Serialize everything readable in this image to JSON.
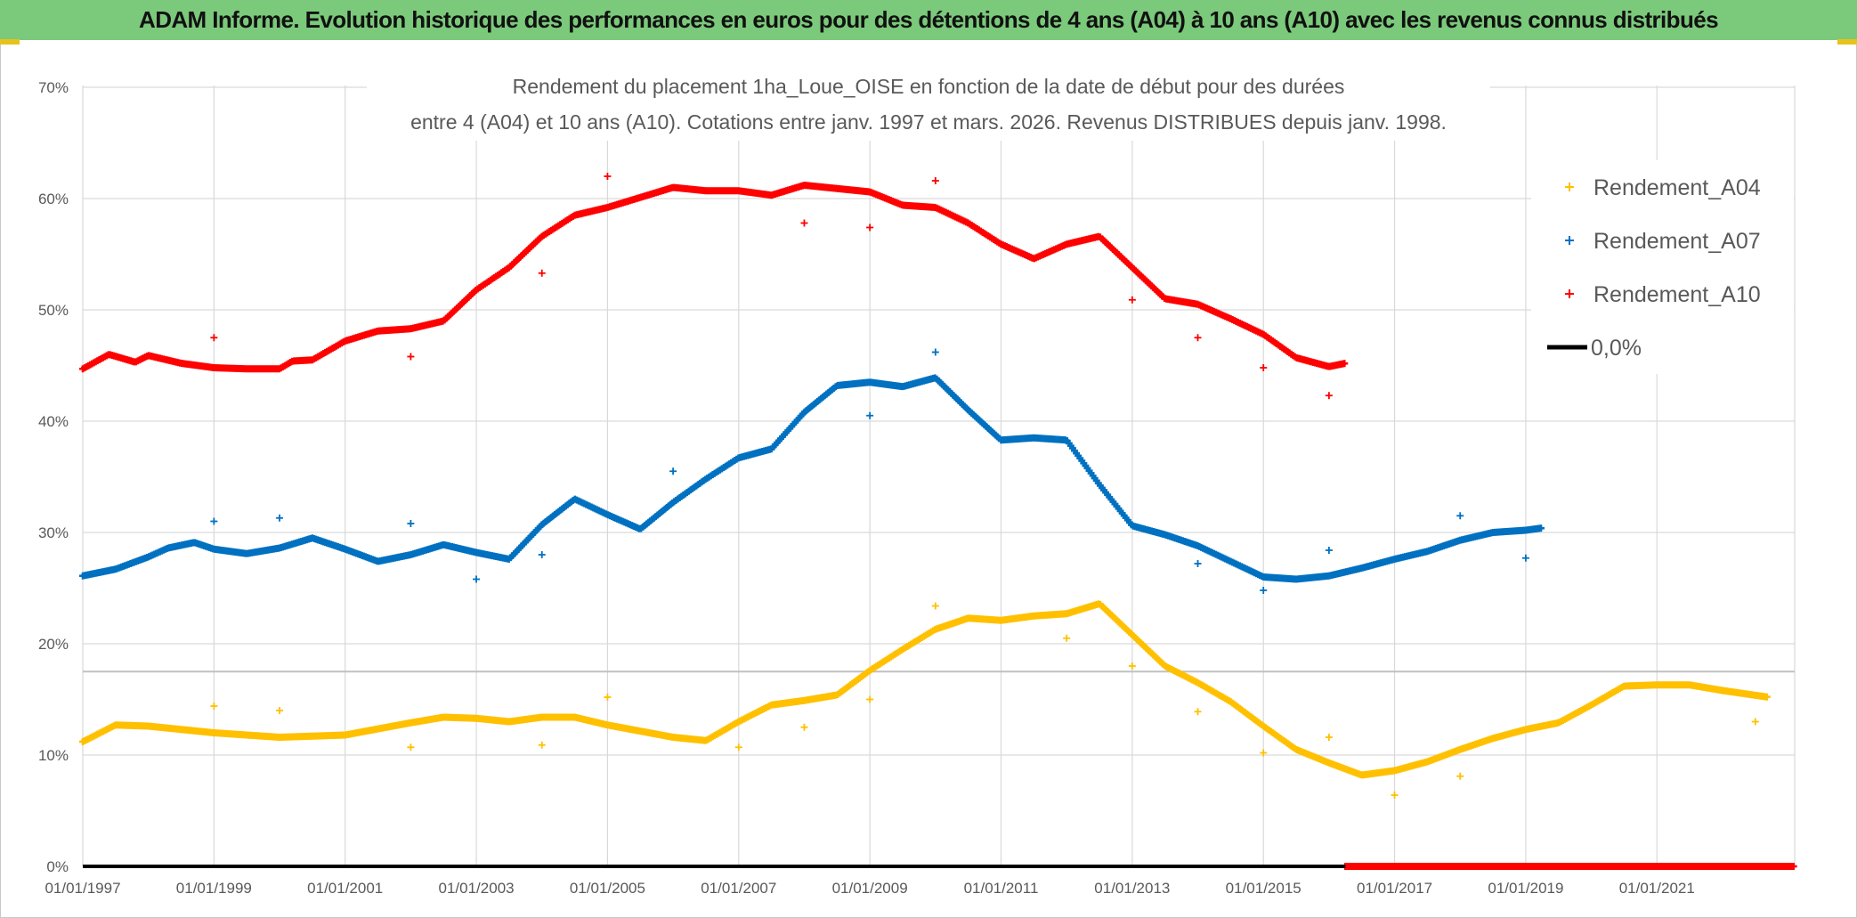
{
  "banner": {
    "text": "ADAM Informe. Evolution historique des performances en euros pour des détentions de 4 ans (A04) à 10 ans (A10) avec les revenus connus distribués"
  },
  "colors": {
    "banner_bg": "#7bc97b",
    "a04": "#ffc000",
    "a07": "#0070c0",
    "a10": "#ff0000",
    "zero": "#000000",
    "grid": "#d9d9d9",
    "text": "#595959"
  },
  "chart_data": {
    "type": "scatter",
    "title_lines": [
      "Rendement du placement 1ha_Loue_OISE en fonction de la date de début pour des durées",
      "entre 4 (A04) et 10 ans (A10). Cotations entre janv. 1997 et mars. 2026. Revenus DISTRIBUES depuis janv. 1998."
    ],
    "x_range": [
      1997.0,
      2023.1
    ],
    "x_ticks": [
      {
        "value": 1997,
        "label": "01/01/1997"
      },
      {
        "value": 1999,
        "label": "01/01/1999"
      },
      {
        "value": 2001,
        "label": "01/01/2001"
      },
      {
        "value": 2003,
        "label": "01/01/2003"
      },
      {
        "value": 2005,
        "label": "01/01/2005"
      },
      {
        "value": 2007,
        "label": "01/01/2007"
      },
      {
        "value": 2009,
        "label": "01/01/2009"
      },
      {
        "value": 2011,
        "label": "01/01/2011"
      },
      {
        "value": 2013,
        "label": "01/01/2013"
      },
      {
        "value": 2015,
        "label": "01/01/2015"
      },
      {
        "value": 2017,
        "label": "01/01/2017"
      },
      {
        "value": 2019,
        "label": "01/01/2019"
      },
      {
        "value": 2021,
        "label": "01/01/2021"
      }
    ],
    "ylim": [
      0,
      70
    ],
    "y_ticks": [
      {
        "value": 0,
        "label": "0%"
      },
      {
        "value": 10,
        "label": "10%"
      },
      {
        "value": 20,
        "label": "20%"
      },
      {
        "value": 30,
        "label": "30%"
      },
      {
        "value": 40,
        "label": "40%"
      },
      {
        "value": 50,
        "label": "50%"
      },
      {
        "value": 60,
        "label": "60%"
      },
      {
        "value": 70,
        "label": "70%"
      }
    ],
    "x_grid_years": [
      1997,
      1999,
      2001,
      2003,
      2005,
      2007,
      2009,
      2011,
      2013,
      2015,
      2017,
      2019,
      2021,
      2023.1
    ],
    "reference_line": {
      "y": 17.5
    },
    "legend_position": "right",
    "series": [
      {
        "name": "Rendement_A04",
        "color": "#ffc000",
        "end_x": 2022.7,
        "points": [
          [
            1997.0,
            11.2
          ],
          [
            1997.5,
            12.7
          ],
          [
            1998.0,
            12.6
          ],
          [
            1999.0,
            12.0
          ],
          [
            2000.0,
            11.6
          ],
          [
            2001.0,
            11.8
          ],
          [
            2002.0,
            12.9
          ],
          [
            2002.5,
            13.4
          ],
          [
            2003.0,
            13.3
          ],
          [
            2003.5,
            13.0
          ],
          [
            2004.0,
            13.4
          ],
          [
            2004.5,
            13.4
          ],
          [
            2005.0,
            12.7
          ],
          [
            2006.0,
            11.6
          ],
          [
            2006.5,
            11.3
          ],
          [
            2007.0,
            13.0
          ],
          [
            2007.5,
            14.5
          ],
          [
            2008.0,
            14.9
          ],
          [
            2008.5,
            15.4
          ],
          [
            2009.0,
            17.6
          ],
          [
            2009.5,
            19.5
          ],
          [
            2010.0,
            21.3
          ],
          [
            2010.5,
            22.3
          ],
          [
            2011.0,
            22.1
          ],
          [
            2011.5,
            22.5
          ],
          [
            2012.0,
            22.7
          ],
          [
            2012.5,
            23.6
          ],
          [
            2013.0,
            20.8
          ],
          [
            2013.5,
            18.0
          ],
          [
            2014.0,
            16.5
          ],
          [
            2014.5,
            14.8
          ],
          [
            2015.0,
            12.6
          ],
          [
            2015.5,
            10.5
          ],
          [
            2016.0,
            9.3
          ],
          [
            2016.5,
            8.2
          ],
          [
            2017.0,
            8.6
          ],
          [
            2017.5,
            9.4
          ],
          [
            2018.0,
            10.5
          ],
          [
            2018.5,
            11.5
          ],
          [
            2019.0,
            12.3
          ],
          [
            2019.5,
            12.9
          ],
          [
            2020.0,
            14.5
          ],
          [
            2020.5,
            16.2
          ],
          [
            2021.0,
            16.3
          ],
          [
            2021.5,
            16.3
          ],
          [
            2022.0,
            15.8
          ],
          [
            2022.7,
            15.2
          ]
        ],
        "outliers": [
          [
            1999.0,
            14.4
          ],
          [
            2000.0,
            14.0
          ],
          [
            2002.0,
            10.7
          ],
          [
            2004.0,
            10.9
          ],
          [
            2005.0,
            15.2
          ],
          [
            2007.0,
            10.7
          ],
          [
            2008.0,
            12.5
          ],
          [
            2009.0,
            15.0
          ],
          [
            2010.0,
            23.4
          ],
          [
            2012.0,
            20.5
          ],
          [
            2013.0,
            18.0
          ],
          [
            2014.0,
            13.9
          ],
          [
            2015.0,
            10.2
          ],
          [
            2016.0,
            11.6
          ],
          [
            2017.0,
            6.4
          ],
          [
            2018.0,
            8.1
          ],
          [
            2022.5,
            13.0
          ]
        ]
      },
      {
        "name": "Rendement_A07",
        "color": "#0070c0",
        "end_x": 2019.25,
        "points": [
          [
            1997.0,
            26.1
          ],
          [
            1997.5,
            26.7
          ],
          [
            1998.0,
            27.8
          ],
          [
            1998.3,
            28.6
          ],
          [
            1998.7,
            29.1
          ],
          [
            1999.0,
            28.5
          ],
          [
            1999.5,
            28.1
          ],
          [
            2000.0,
            28.6
          ],
          [
            2000.5,
            29.5
          ],
          [
            2001.0,
            28.5
          ],
          [
            2001.5,
            27.4
          ],
          [
            2002.0,
            28.0
          ],
          [
            2002.5,
            28.9
          ],
          [
            2003.0,
            28.2
          ],
          [
            2003.5,
            27.6
          ],
          [
            2004.0,
            30.7
          ],
          [
            2004.5,
            33.0
          ],
          [
            2005.0,
            31.6
          ],
          [
            2005.5,
            30.3
          ],
          [
            2006.0,
            32.7
          ],
          [
            2006.5,
            34.8
          ],
          [
            2007.0,
            36.7
          ],
          [
            2007.5,
            37.5
          ],
          [
            2008.0,
            40.8
          ],
          [
            2008.5,
            43.2
          ],
          [
            2009.0,
            43.5
          ],
          [
            2009.5,
            43.1
          ],
          [
            2010.0,
            43.9
          ],
          [
            2010.5,
            41.0
          ],
          [
            2011.0,
            38.3
          ],
          [
            2011.5,
            38.5
          ],
          [
            2012.0,
            38.3
          ],
          [
            2012.5,
            34.3
          ],
          [
            2013.0,
            30.6
          ],
          [
            2013.5,
            29.8
          ],
          [
            2014.0,
            28.8
          ],
          [
            2014.5,
            27.4
          ],
          [
            2015.0,
            26.0
          ],
          [
            2015.5,
            25.8
          ],
          [
            2016.0,
            26.1
          ],
          [
            2016.5,
            26.8
          ],
          [
            2017.0,
            27.6
          ],
          [
            2017.5,
            28.3
          ],
          [
            2018.0,
            29.3
          ],
          [
            2018.5,
            30.0
          ],
          [
            2019.0,
            30.2
          ],
          [
            2019.25,
            30.4
          ]
        ],
        "outliers": [
          [
            1999.0,
            31.0
          ],
          [
            2000.0,
            31.3
          ],
          [
            2002.0,
            30.8
          ],
          [
            2003.0,
            25.8
          ],
          [
            2004.0,
            28.0
          ],
          [
            2006.0,
            35.5
          ],
          [
            2009.0,
            40.5
          ],
          [
            2010.0,
            46.2
          ],
          [
            2014.0,
            27.2
          ],
          [
            2015.0,
            24.8
          ],
          [
            2016.0,
            28.4
          ],
          [
            2018.0,
            31.5
          ],
          [
            2019.0,
            27.7
          ]
        ]
      },
      {
        "name": "Rendement_A10",
        "color": "#ff0000",
        "end_x": 2016.25,
        "points": [
          [
            1997.0,
            44.7
          ],
          [
            1997.4,
            46.0
          ],
          [
            1997.8,
            45.3
          ],
          [
            1998.0,
            45.9
          ],
          [
            1998.5,
            45.2
          ],
          [
            1999.0,
            44.8
          ],
          [
            1999.5,
            44.7
          ],
          [
            2000.0,
            44.7
          ],
          [
            2000.2,
            45.4
          ],
          [
            2000.5,
            45.5
          ],
          [
            2001.0,
            47.2
          ],
          [
            2001.5,
            48.1
          ],
          [
            2002.0,
            48.3
          ],
          [
            2002.5,
            49.0
          ],
          [
            2003.0,
            51.8
          ],
          [
            2003.5,
            53.8
          ],
          [
            2004.0,
            56.6
          ],
          [
            2004.5,
            58.5
          ],
          [
            2005.0,
            59.2
          ],
          [
            2005.5,
            60.1
          ],
          [
            2006.0,
            61.0
          ],
          [
            2006.5,
            60.7
          ],
          [
            2007.0,
            60.7
          ],
          [
            2007.5,
            60.3
          ],
          [
            2008.0,
            61.2
          ],
          [
            2008.5,
            60.9
          ],
          [
            2009.0,
            60.6
          ],
          [
            2009.5,
            59.4
          ],
          [
            2010.0,
            59.2
          ],
          [
            2010.5,
            57.8
          ],
          [
            2011.0,
            55.9
          ],
          [
            2011.5,
            54.6
          ],
          [
            2012.0,
            55.9
          ],
          [
            2012.5,
            56.6
          ],
          [
            2013.0,
            53.8
          ],
          [
            2013.5,
            51.0
          ],
          [
            2014.0,
            50.5
          ],
          [
            2014.5,
            49.2
          ],
          [
            2015.0,
            47.8
          ],
          [
            2015.5,
            45.7
          ],
          [
            2016.0,
            44.9
          ],
          [
            2016.25,
            45.2
          ]
        ],
        "outliers": [
          [
            1999.0,
            47.5
          ],
          [
            2002.0,
            45.8
          ],
          [
            2004.0,
            53.3
          ],
          [
            2005.0,
            62.0
          ],
          [
            2008.0,
            57.8
          ],
          [
            2009.0,
            57.4
          ],
          [
            2010.0,
            61.6
          ],
          [
            2013.0,
            50.9
          ],
          [
            2014.0,
            47.5
          ],
          [
            2015.0,
            44.8
          ],
          [
            2016.0,
            42.3
          ]
        ],
        "zero_segment": [
          2016.25,
          2023.1
        ]
      },
      {
        "name": "0,0%",
        "color": "#000000",
        "type": "line",
        "y": 0,
        "x_span": [
          1997.0,
          2016.25
        ]
      }
    ]
  }
}
